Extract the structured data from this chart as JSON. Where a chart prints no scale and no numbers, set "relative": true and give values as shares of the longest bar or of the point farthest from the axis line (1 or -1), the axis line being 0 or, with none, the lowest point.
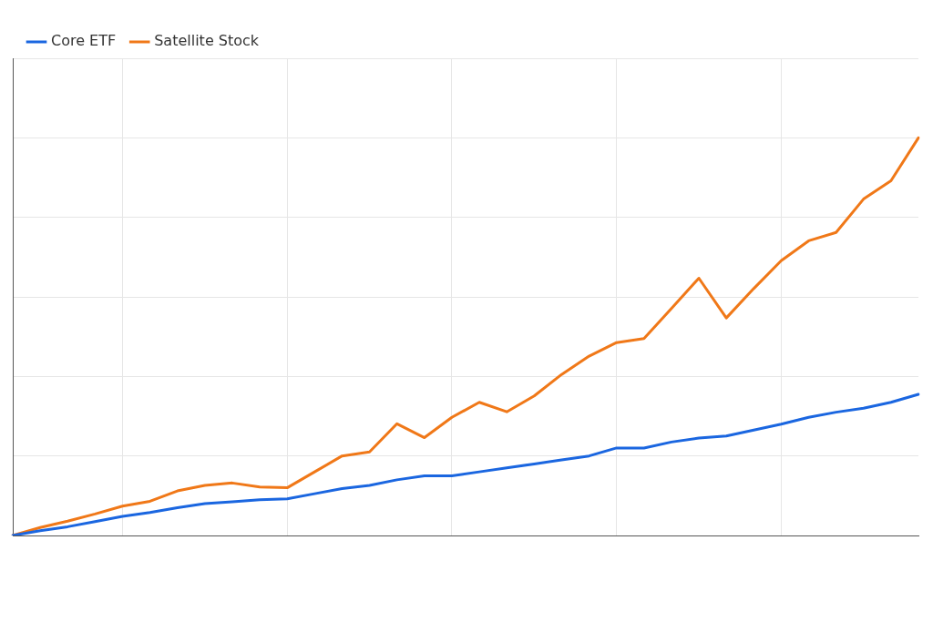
{
  "chart_data": {
    "type": "line",
    "relative": true,
    "grid": true,
    "legend": "top left",
    "marker": "none",
    "line_style": "solid",
    "categories": [
      null,
      null,
      null,
      null,
      null,
      null,
      null,
      null,
      null,
      null,
      null,
      null,
      null,
      null,
      null,
      null,
      null,
      null,
      null,
      null,
      null,
      null,
      null,
      null,
      null,
      null,
      null,
      null,
      null,
      null,
      null,
      null,
      null,
      null
    ],
    "series": [
      {
        "name": "Core ETF",
        "color": "#1a66e0",
        "values": [
          0,
          0.012,
          0.022,
          0.035,
          0.048,
          0.058,
          0.07,
          0.08,
          0.085,
          0.09,
          0.092,
          0.105,
          0.118,
          0.126,
          0.14,
          0.15,
          0.15,
          0.16,
          0.17,
          0.18,
          0.19,
          0.2,
          0.22,
          0.22,
          0.235,
          0.245,
          0.25,
          0.265,
          0.28,
          0.297,
          0.31,
          0.32,
          0.335,
          0.355
        ]
      },
      {
        "name": "Satellite Stock",
        "color": "#f07818",
        "values": [
          0,
          0.02,
          0.036,
          0.054,
          0.074,
          0.086,
          0.112,
          0.126,
          0.132,
          0.122,
          0.12,
          0.16,
          0.2,
          0.21,
          0.281,
          0.246,
          0.297,
          0.335,
          0.311,
          0.351,
          0.405,
          0.451,
          0.485,
          0.495,
          0.571,
          0.647,
          0.547,
          0.621,
          0.691,
          0.741,
          0.762,
          0.846,
          0.892,
          1
        ]
      }
    ]
  }
}
